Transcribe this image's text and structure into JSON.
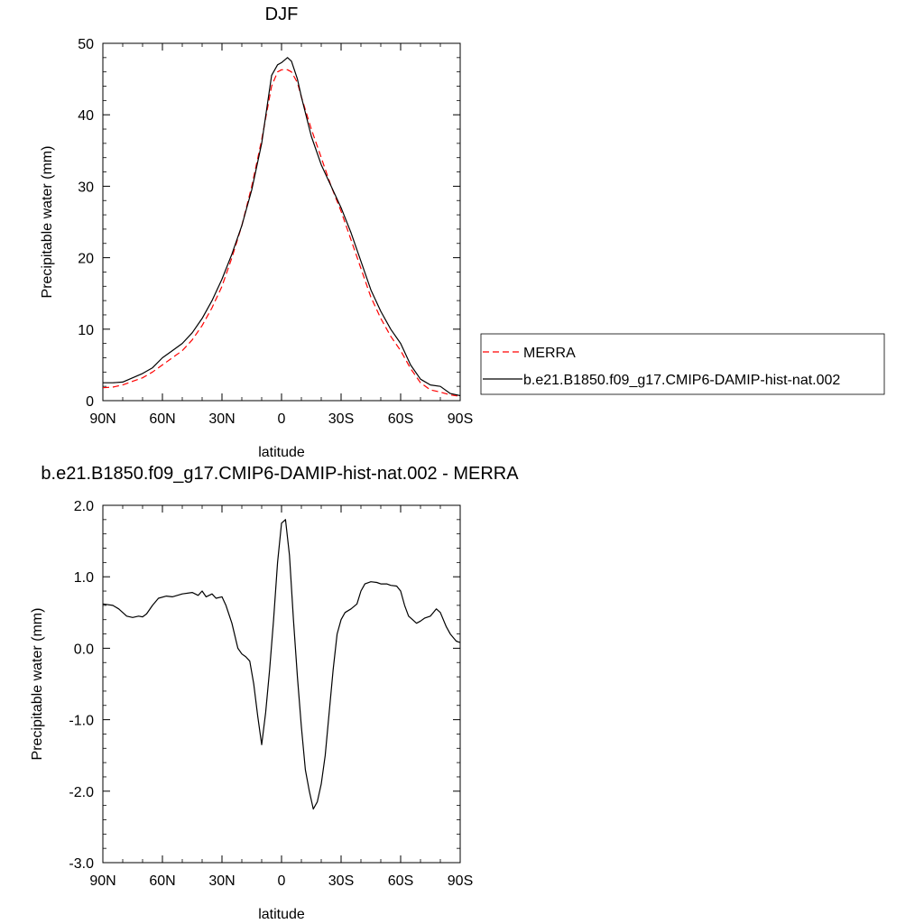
{
  "chart_data": [
    {
      "type": "line",
      "title": "DJF",
      "xlabel": "latitude",
      "ylabel": "Precipitable water (mm)",
      "xlim": [
        -90,
        90
      ],
      "ylim": [
        0,
        50
      ],
      "x_ticks": [
        -90,
        -60,
        -30,
        0,
        30,
        60,
        90
      ],
      "x_tick_labels": [
        "90N",
        "60N",
        "30N",
        "0",
        "30S",
        "60S",
        "90S"
      ],
      "y_ticks": [
        0,
        10,
        20,
        30,
        40,
        50
      ],
      "y_tick_labels": [
        "0",
        "10",
        "20",
        "30",
        "40",
        "50"
      ],
      "legend_position": "right",
      "grid": false,
      "series": [
        {
          "name": "MERRA",
          "color": "#ff0000",
          "style": "dashed",
          "x": [
            -90,
            -85,
            -80,
            -75,
            -70,
            -65,
            -60,
            -55,
            -50,
            -45,
            -40,
            -35,
            -30,
            -25,
            -20,
            -15,
            -10,
            -5,
            -2,
            0,
            3,
            5,
            8,
            10,
            15,
            20,
            25,
            30,
            35,
            40,
            45,
            50,
            55,
            60,
            65,
            70,
            75,
            80,
            85,
            90
          ],
          "values": [
            1.8,
            1.9,
            2.2,
            2.7,
            3.2,
            4.0,
            5.0,
            6.0,
            7.0,
            8.5,
            10.5,
            13.0,
            16.0,
            20.0,
            24.5,
            30.0,
            36.5,
            44.0,
            46.0,
            46.3,
            46.3,
            46.0,
            44.5,
            42.5,
            38.0,
            34.0,
            30.0,
            26.5,
            22.5,
            18.5,
            14.5,
            11.5,
            9.0,
            7.0,
            4.5,
            2.5,
            1.5,
            1.2,
            0.8,
            0.6
          ]
        },
        {
          "name": "b.e21.B1850.f09_g17.CMIP6-DAMIP-hist-nat.002",
          "color": "#000000",
          "style": "solid",
          "x": [
            -90,
            -85,
            -80,
            -75,
            -70,
            -65,
            -60,
            -55,
            -50,
            -45,
            -40,
            -35,
            -30,
            -25,
            -20,
            -15,
            -10,
            -5,
            -2,
            0,
            3,
            5,
            8,
            10,
            15,
            20,
            25,
            30,
            35,
            40,
            45,
            50,
            55,
            60,
            65,
            70,
            75,
            80,
            85,
            90
          ],
          "values": [
            2.5,
            2.5,
            2.6,
            3.2,
            3.8,
            4.6,
            6.0,
            7.0,
            8.0,
            9.5,
            11.5,
            14.0,
            17.0,
            20.5,
            24.5,
            29.5,
            36.0,
            45.5,
            47.0,
            47.3,
            48.0,
            47.5,
            45.0,
            42.5,
            37.0,
            33.0,
            30.0,
            27.0,
            23.5,
            19.5,
            15.5,
            12.5,
            10.0,
            8.0,
            5.0,
            3.0,
            2.2,
            2.0,
            1.0,
            0.7
          ]
        }
      ]
    },
    {
      "type": "line",
      "title": "b.e21.B1850.f09_g17.CMIP6-DAMIP-hist-nat.002 - MERRA",
      "xlabel": "latitude",
      "ylabel": "Precipitable water (mm)",
      "xlim": [
        -90,
        90
      ],
      "ylim": [
        -3.0,
        2.0
      ],
      "x_ticks": [
        -90,
        -60,
        -30,
        0,
        30,
        60,
        90
      ],
      "x_tick_labels": [
        "90N",
        "60N",
        "30N",
        "0",
        "30S",
        "60S",
        "90S"
      ],
      "y_ticks": [
        -3.0,
        -2.0,
        -1.0,
        0.0,
        1.0,
        2.0
      ],
      "y_tick_labels": [
        "-3.0",
        "-2.0",
        "-1.0",
        "0.0",
        "1.0",
        "2.0"
      ],
      "grid": false,
      "series": [
        {
          "color": "#000000",
          "style": "solid",
          "x": [
            -90,
            -85,
            -82,
            -80,
            -78,
            -75,
            -72,
            -70,
            -68,
            -65,
            -62,
            -58,
            -55,
            -50,
            -45,
            -42,
            -40,
            -38,
            -35,
            -33,
            -30,
            -28,
            -25,
            -22,
            -20,
            -18,
            -16,
            -14,
            -12,
            -10,
            -8,
            -6,
            -4,
            -2,
            0,
            2,
            4,
            6,
            8,
            10,
            12,
            14,
            16,
            18,
            20,
            22,
            24,
            26,
            28,
            30,
            32,
            35,
            38,
            40,
            42,
            45,
            48,
            50,
            53,
            55,
            58,
            60,
            62,
            64,
            66,
            68,
            70,
            72,
            75,
            78,
            80,
            83,
            85,
            88,
            90
          ],
          "values": [
            0.62,
            0.6,
            0.55,
            0.5,
            0.45,
            0.43,
            0.45,
            0.44,
            0.48,
            0.6,
            0.7,
            0.73,
            0.72,
            0.76,
            0.78,
            0.74,
            0.8,
            0.72,
            0.76,
            0.7,
            0.72,
            0.6,
            0.35,
            0.0,
            -0.08,
            -0.12,
            -0.18,
            -0.5,
            -0.95,
            -1.35,
            -0.9,
            -0.3,
            0.4,
            1.2,
            1.75,
            1.8,
            1.3,
            0.4,
            -0.4,
            -1.1,
            -1.7,
            -2.0,
            -2.25,
            -2.15,
            -1.9,
            -1.5,
            -0.9,
            -0.3,
            0.2,
            0.4,
            0.5,
            0.55,
            0.62,
            0.8,
            0.9,
            0.93,
            0.92,
            0.9,
            0.9,
            0.88,
            0.87,
            0.8,
            0.6,
            0.45,
            0.4,
            0.35,
            0.38,
            0.42,
            0.45,
            0.55,
            0.5,
            0.3,
            0.2,
            0.1,
            0.08
          ]
        }
      ]
    }
  ],
  "legend": {
    "entries": [
      "MERRA",
      "b.e21.B1850.f09_g17.CMIP6-DAMIP-hist-nat.002"
    ]
  }
}
